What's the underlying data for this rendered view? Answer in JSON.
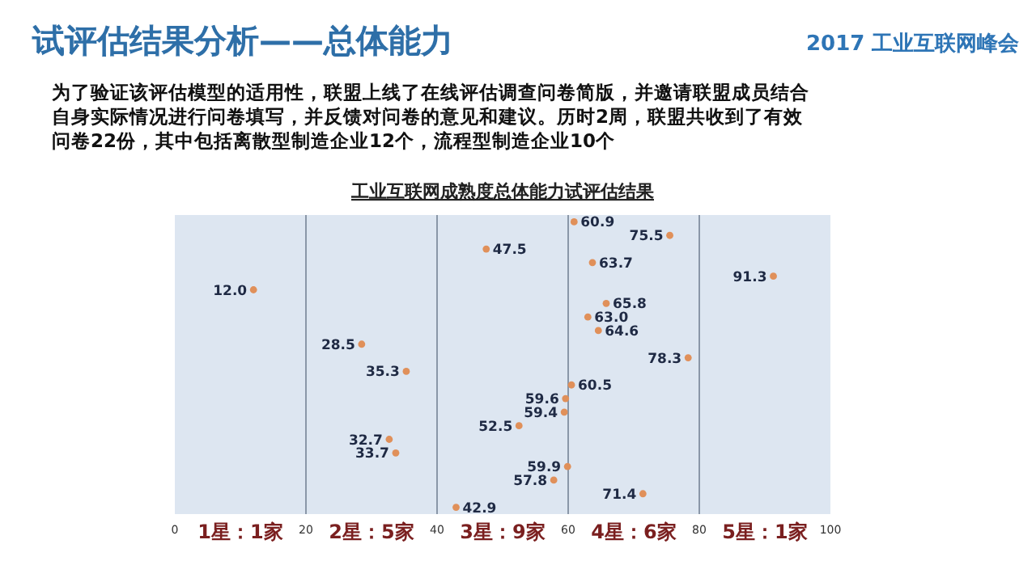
{
  "chart_data": {
    "type": "scatter",
    "orientation": "horizontal",
    "title": "试评估结果分析——总体能力",
    "subtitle": "为了验证该评估模型的适用性，联盟上线了在线评估调查问卷简版，并邀请联盟成员结合自身实际情况进行问卷填写，并反馈对问卷的意见和建议。历时2周，联盟共收到了有效问卷22份，其中包括离散型制造企业12个，流程型制造企业10个",
    "annotations": [
      "2017 工业互联网峰会",
      "工业互联网成熟度总体能力试评估结果",
      "1星：1家",
      "2星：5家",
      "3星：9家",
      "4星：6家",
      "5星：1家"
    ],
    "categories": [
      null,
      null,
      null,
      null,
      null,
      null,
      null,
      null,
      null,
      null,
      null,
      null,
      null,
      null,
      null,
      null,
      null,
      null,
      null,
      null,
      null,
      null
    ],
    "values": [
      60.9,
      75.5,
      47.5,
      63.7,
      91.3,
      12.0,
      65.8,
      63.0,
      64.6,
      28.5,
      78.3,
      35.3,
      60.5,
      59.6,
      59.4,
      52.5,
      32.7,
      33.7,
      59.9,
      57.8,
      71.4,
      42.9
    ],
    "value_labels": [
      "60.9",
      "75.5",
      "47.5",
      "63.7",
      "91.3",
      "12.0",
      "65.8",
      "63.0",
      "64.6",
      "28.5",
      "78.3",
      "35.3",
      "60.5",
      "59.6",
      "59.4",
      "52.5",
      "32.7",
      "33.7",
      "59.9",
      "57.8",
      "71.4",
      "42.9"
    ],
    "color": "#e0905a",
    "marker": "circle",
    "xlim": [
      0,
      100
    ],
    "xticks": [
      0,
      20,
      40,
      60,
      80,
      100
    ],
    "grid": "x",
    "tick_labels": "x"
  }
}
